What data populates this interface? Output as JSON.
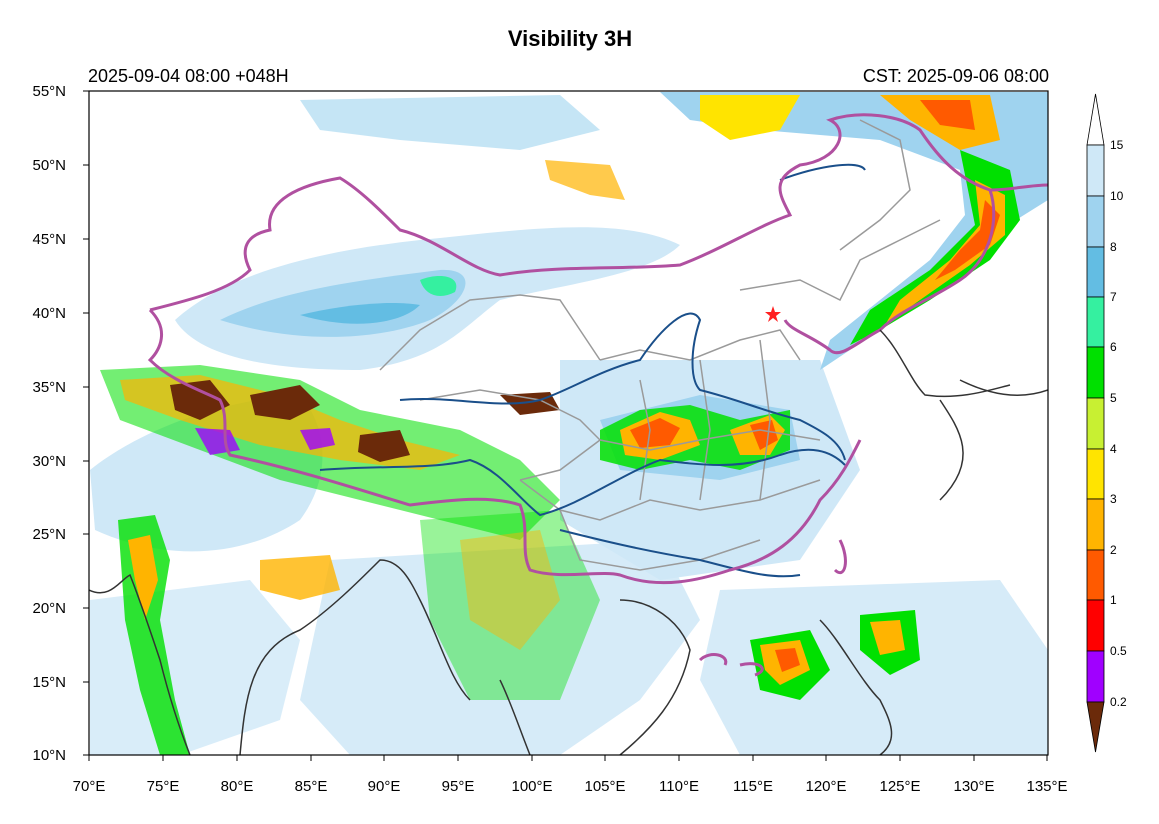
{
  "title": "Visibility 3H",
  "init_label": "2025-09-04 08:00 +048H",
  "valid_label": "CST: 2025-09-06 08:00",
  "axes": {
    "lat_labels": [
      "55°N",
      "50°N",
      "45°N",
      "40°N",
      "35°N",
      "30°N",
      "25°N",
      "20°N",
      "15°N",
      "10°N"
    ],
    "lon_labels": [
      "70°E",
      "75°E",
      "80°E",
      "85°E",
      "90°E",
      "95°E",
      "100°E",
      "105°E",
      "110°E",
      "115°E",
      "120°E",
      "125°E",
      "130°E",
      "135°E"
    ]
  },
  "colorbar": {
    "levels": [
      "15",
      "10",
      "8",
      "7",
      "6",
      "5",
      "4",
      "3",
      "2",
      "1",
      "0.5",
      "0.2"
    ],
    "colors": [
      "#cfe8f7",
      "#9fd3ef",
      "#63bde3",
      "#35f0a0",
      "#00e000",
      "#c8f032",
      "#ffe400",
      "#ffb400",
      "#ff5a00",
      "#ff0000",
      "#a000ff",
      "#6b2a0a"
    ]
  },
  "map": {
    "marker": "star"
  }
}
